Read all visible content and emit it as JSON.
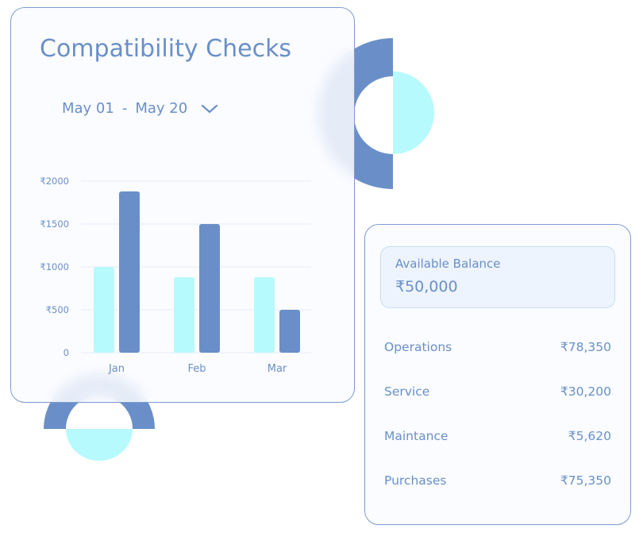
{
  "chart_card": {
    "title": "Compatibility Checks",
    "date_range": {
      "start": "May 01",
      "separator": "-",
      "end": "May 20"
    }
  },
  "chart_data": {
    "type": "bar",
    "categories": [
      "Jan",
      "Feb",
      "Mar"
    ],
    "series": [
      {
        "values": [
          1000,
          880,
          880
        ],
        "color": "#b6fafd"
      },
      {
        "values": [
          1880,
          1500,
          500
        ],
        "color": "#6a8fc8"
      }
    ],
    "yticks": [
      "0",
      "₹500",
      "₹1000",
      "₹1500",
      "₹2000"
    ],
    "ylim": [
      0,
      2000
    ],
    "grid": true
  },
  "balance_card": {
    "label": "Available Balance",
    "value": "₹50,000",
    "rows": [
      {
        "label": "Operations",
        "value": "₹78,350"
      },
      {
        "label": "Service",
        "value": "₹30,200"
      },
      {
        "label": "Maintance",
        "value": "₹5,620"
      },
      {
        "label": "Purchases",
        "value": "₹75,350"
      }
    ]
  },
  "colors": {
    "accent": "#6a8fc8",
    "light": "#b6fafd",
    "border": "#7d9bd0"
  }
}
